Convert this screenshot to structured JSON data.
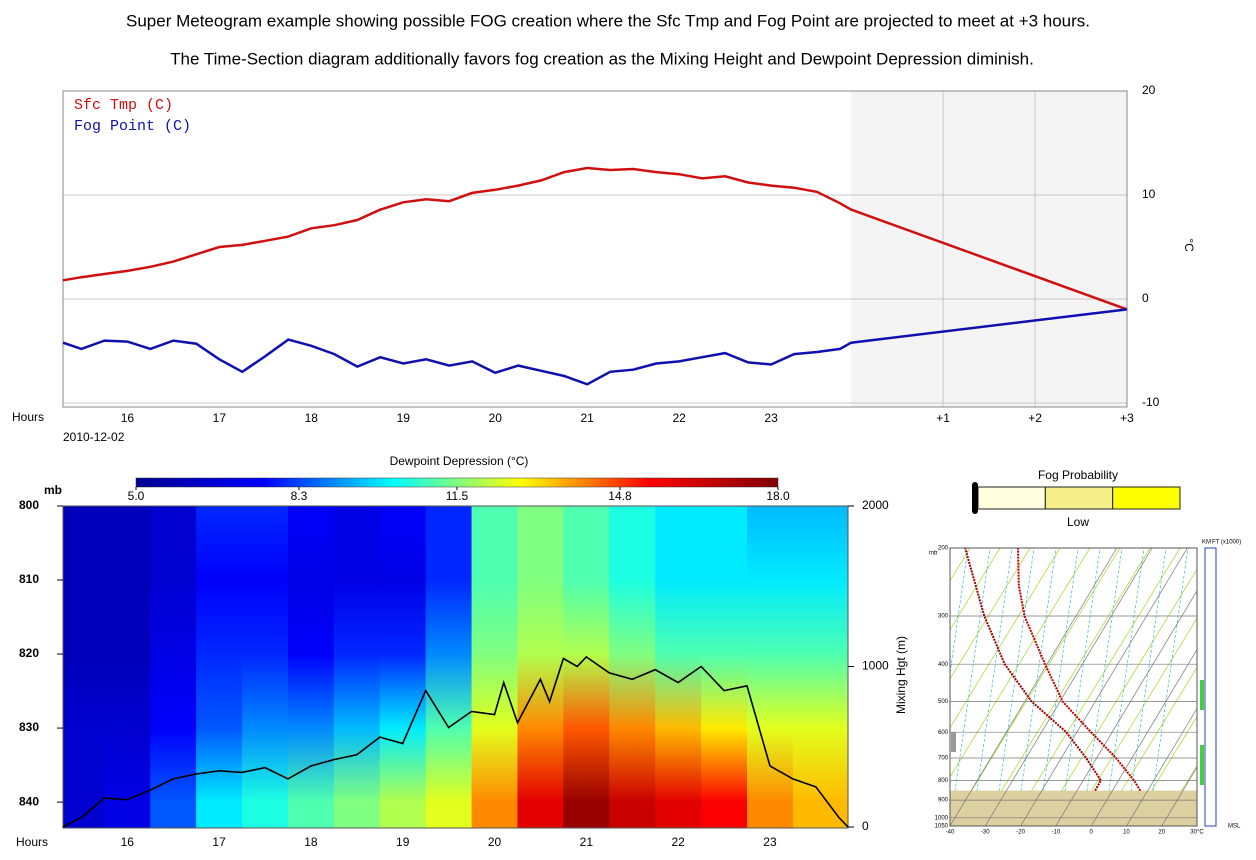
{
  "title": [
    "Super Meteogram example showing possible FOG creation where the Sfc Tmp and Fog Point are projected to meet at +3 hours.",
    "The Time-Section diagram additionally favors fog creation as the Mixing Height and Dewpoint Depression diminish."
  ],
  "chart_data": [
    {
      "type": "line",
      "xlabel": "Hours",
      "date_label": "2010-12-02",
      "y2label": "°C",
      "grid": true,
      "forecast_start": 23.87,
      "x": [
        15.3,
        15.5,
        15.75,
        16,
        16.25,
        16.5,
        16.75,
        17,
        17.25,
        17.5,
        17.75,
        18,
        18.25,
        18.5,
        18.75,
        19,
        19.25,
        19.5,
        19.75,
        20,
        20.25,
        20.5,
        20.75,
        21,
        21.25,
        21.5,
        21.75,
        22,
        22.25,
        22.5,
        22.75,
        23,
        23.25,
        23.5,
        23.75,
        23.87,
        26.87
      ],
      "series": [
        {
          "name": "Sfc Tmp (C)",
          "color": "#d01010",
          "axis": "y2",
          "values": [
            1.8,
            2.1,
            2.4,
            2.7,
            3.1,
            3.6,
            4.3,
            5.0,
            5.2,
            5.6,
            6.0,
            6.8,
            7.1,
            7.6,
            8.6,
            9.3,
            9.6,
            9.4,
            10.2,
            10.5,
            10.9,
            11.4,
            12.2,
            12.6,
            12.4,
            12.5,
            12.2,
            12.0,
            11.6,
            11.8,
            11.2,
            10.9,
            10.7,
            10.3,
            9.2,
            8.6,
            -1
          ]
        },
        {
          "name": "Fog Point (C)",
          "color": "#1010b0",
          "axis": "y2",
          "values": [
            -4.2,
            -4.8,
            -4.0,
            -4.1,
            -4.8,
            -4.0,
            -4.3,
            -5.8,
            -7.0,
            -5.5,
            -3.9,
            -4.5,
            -5.3,
            -6.5,
            -5.6,
            -6.2,
            -5.8,
            -6.4,
            -6.0,
            -7.1,
            -6.4,
            -6.9,
            -7.4,
            -8.2,
            -7.0,
            -6.8,
            -6.2,
            -6.0,
            -5.6,
            -5.2,
            -6.1,
            -6.3,
            -5.3,
            -5.1,
            -4.8,
            -4.2,
            -1
          ]
        }
      ],
      "xlim": [
        15.3,
        26.87
      ],
      "xticks": [
        16,
        17,
        18,
        19,
        20,
        21,
        22,
        23,
        {
          "value": 24.87,
          "label": "+1"
        },
        {
          "value": 25.87,
          "label": "+2"
        },
        {
          "value": 26.87,
          "label": "+3"
        }
      ],
      "y2lim": [
        -10,
        20
      ],
      "y2ticks": [
        -10,
        0,
        10,
        20
      ]
    },
    {
      "type": "heatmap",
      "xlabel": "Hours",
      "ylabel": "mb",
      "y2label": "Mixing Hgt (m)",
      "colorbar_title": "Dewpoint Depression (°C)",
      "colormap": [
        "#00008f",
        "#0000ff",
        "#00ffff",
        "#ffff00",
        "#ff0000",
        "#800000"
      ],
      "clim": [
        5,
        18
      ],
      "cticks": [
        {
          "value": 5,
          "label": "5.0"
        },
        8.3,
        11.5,
        14.8,
        {
          "value": 18,
          "label": "18.0"
        }
      ],
      "x": [
        15.5,
        16,
        16.5,
        17,
        17.5,
        18,
        18.5,
        19,
        19.5,
        20,
        20.5,
        21,
        21.5,
        22,
        22.5,
        23,
        23.5
      ],
      "levels": [
        800,
        810,
        820,
        830,
        840
      ],
      "values": [
        [
          6,
          6,
          6,
          6.5,
          6.5
        ],
        [
          6,
          6,
          6,
          6.5,
          7
        ],
        [
          6.5,
          6.5,
          7,
          7.5,
          8.5
        ],
        [
          8,
          7.5,
          8,
          8.5,
          10
        ],
        [
          8,
          7.5,
          8,
          9,
          10.5
        ],
        [
          7.5,
          7,
          7.5,
          9,
          11
        ],
        [
          7,
          7,
          8,
          9.5,
          11.5
        ],
        [
          7.5,
          7,
          8,
          10,
          12
        ],
        [
          8,
          8,
          9,
          11,
          12.5
        ],
        [
          11,
          11,
          11.5,
          12.5,
          14
        ],
        [
          11.5,
          11.5,
          12,
          14,
          16
        ],
        [
          11,
          11,
          12,
          14.5,
          17.5
        ],
        [
          10.5,
          10.5,
          11.5,
          14,
          16.5
        ],
        [
          10,
          10,
          11,
          13.5,
          16
        ],
        [
          10,
          10,
          11,
          13,
          15.5
        ],
        [
          9.5,
          10,
          11,
          12.5,
          14
        ],
        [
          9.5,
          10,
          11,
          12.5,
          13.5
        ]
      ],
      "xlim": [
        15.3,
        23.85
      ],
      "xticks": [
        16,
        17,
        18,
        19,
        20,
        21,
        22,
        23
      ],
      "ylim": [
        800,
        843.5
      ],
      "yticks": [
        800,
        810,
        820,
        830,
        840
      ],
      "y2lim": [
        0,
        2000
      ],
      "y2ticks": [
        0,
        1000,
        2000
      ],
      "series": [
        {
          "color": "#000000",
          "axis": "y2",
          "x": [
            15.3,
            15.5,
            15.75,
            16,
            16.25,
            16.5,
            16.75,
            17,
            17.25,
            17.5,
            17.75,
            18,
            18.25,
            18.5,
            18.75,
            19,
            19.25,
            19.5,
            19.75,
            20,
            20.1,
            20.25,
            20.5,
            20.6,
            20.75,
            20.9,
            21,
            21.25,
            21.5,
            21.75,
            22,
            22.25,
            22.5,
            22.75,
            23,
            23.25,
            23.5,
            23.75,
            23.85
          ],
          "values": [
            0,
            60,
            180,
            170,
            230,
            300,
            330,
            350,
            340,
            370,
            300,
            380,
            420,
            450,
            560,
            520,
            850,
            620,
            720,
            700,
            900,
            650,
            920,
            780,
            1050,
            1000,
            1060,
            960,
            920,
            980,
            900,
            1000,
            850,
            880,
            380,
            300,
            250,
            60,
            0
          ]
        }
      ]
    },
    {
      "type": "gauge",
      "title": "Fog Probability",
      "label": "Low",
      "colors": [
        "#ffffe0",
        "#f4ef8a",
        "#ffff00"
      ]
    },
    {
      "type": "skewt",
      "ylabel": "mb",
      "right_labels": [
        "KM",
        "FT (x1000)",
        "MSL"
      ],
      "plim": [
        200,
        1050
      ],
      "pticks": [
        200,
        300,
        400,
        500,
        600,
        700,
        800,
        900,
        1000,
        1050
      ],
      "tlim": [
        -40,
        30
      ],
      "tticks": [
        -40,
        -30,
        -20,
        -10,
        0,
        10,
        20,
        {
          "value": 30,
          "label": "30°C"
        }
      ],
      "series": [
        {
          "color": "#c00000",
          "pressure": [
            850,
            800,
            700,
            600,
            500,
            400,
            300,
            250,
            200
          ],
          "values": [
            7.9,
            4.4,
            -4.5,
            -16,
            -29.2,
            -40.6,
            -54.6,
            -61.4,
            -68
          ]
        },
        {
          "color": "#a00000",
          "pressure": [
            850,
            800,
            700,
            600,
            500,
            400,
            300,
            200
          ],
          "values": [
            -4.9,
            -5,
            -13,
            -23,
            -38,
            -52,
            -66,
            -83
          ]
        }
      ]
    }
  ]
}
